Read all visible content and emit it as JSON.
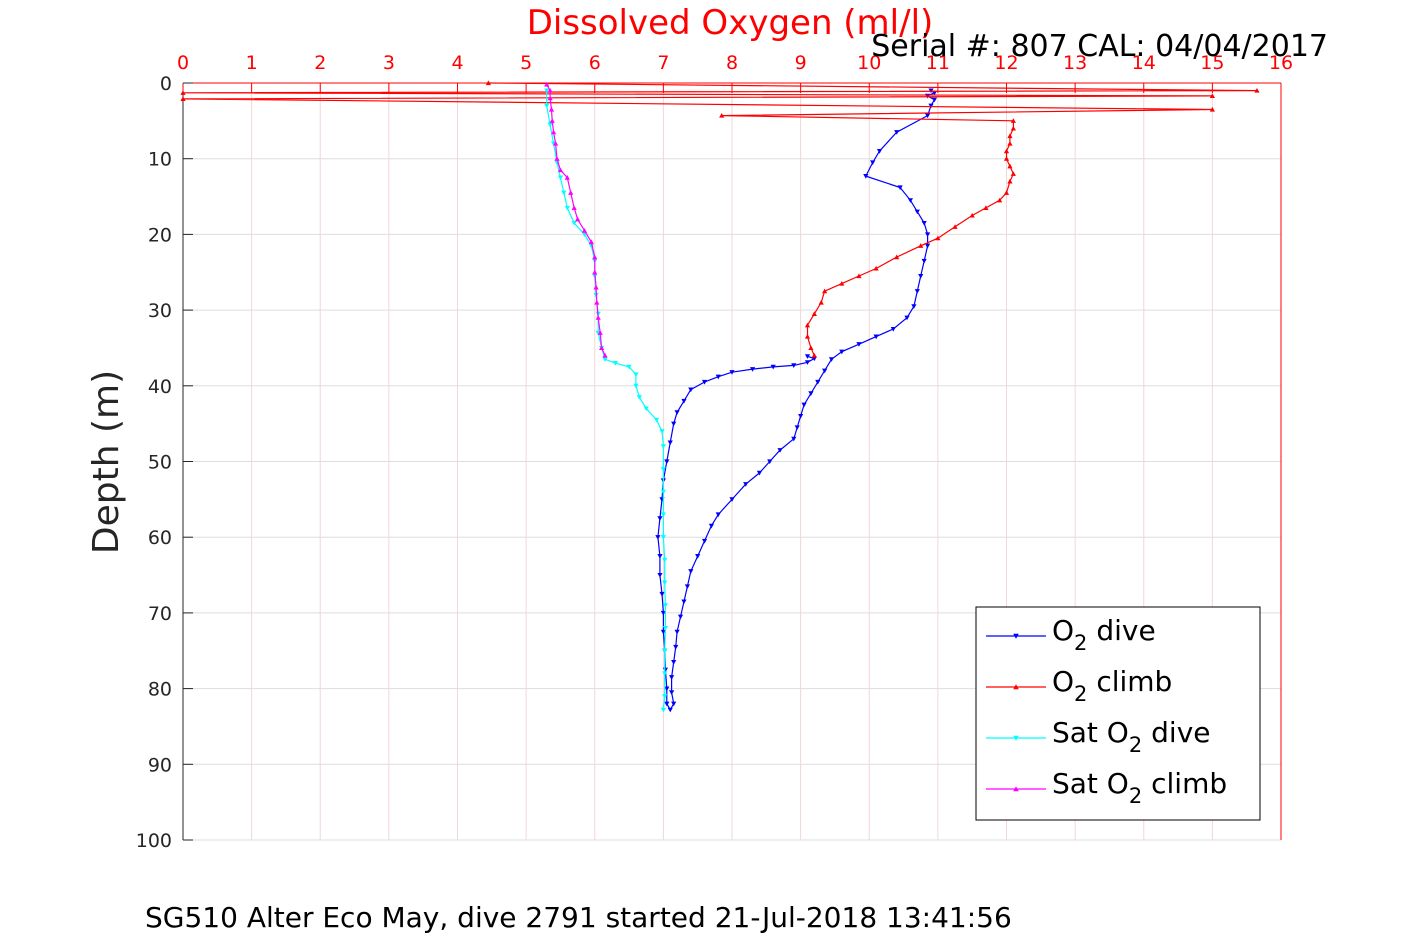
{
  "chart_data": {
    "type": "line",
    "title": "Dissolved Oxygen (ml/l)",
    "subtitle": "Serial #: 807  CAL: 04/04/2017",
    "footer": "SG510 Alter Eco May, dive 2791 started 21-Jul-2018 13:41:56",
    "xlabel": "Dissolved Oxygen (ml/l)",
    "ylabel": "Depth (m)",
    "xlim": [
      0,
      16
    ],
    "ylim": [
      0,
      100
    ],
    "y_reversed": true,
    "x_axis_position": "top",
    "grid": true,
    "legend_placement": "bottom-right",
    "x_ticks": [
      "0",
      "1",
      "2",
      "3",
      "4",
      "5",
      "6",
      "7",
      "8",
      "9",
      "10",
      "11",
      "12",
      "13",
      "14",
      "15",
      "16"
    ],
    "y_ticks": [
      "0",
      "10",
      "20",
      "30",
      "40",
      "50",
      "60",
      "70",
      "80",
      "90",
      "100"
    ],
    "colors": {
      "title": "#ff0000",
      "x_axis": "#ff0000",
      "y_axis": "#262626",
      "grid": "#dcdcdc"
    },
    "series": [
      {
        "name": "O2 dive",
        "legend": {
          "base": "O",
          "sub": "2",
          "rest": " dive"
        },
        "color": "#0000ff",
        "marker": "triangle-down",
        "points": [
          [
            10.9,
            1.0
          ],
          [
            10.95,
            1.3
          ],
          [
            10.85,
            1.7
          ],
          [
            10.95,
            2.2
          ],
          [
            10.9,
            3.0
          ],
          [
            10.85,
            4.3
          ],
          [
            10.4,
            6.5
          ],
          [
            10.15,
            9.0
          ],
          [
            10.05,
            10.5
          ],
          [
            9.95,
            12.3
          ],
          [
            10.45,
            13.8
          ],
          [
            10.6,
            15.5
          ],
          [
            10.7,
            17.0
          ],
          [
            10.8,
            18.5
          ],
          [
            10.85,
            20.0
          ],
          [
            10.85,
            21.5
          ],
          [
            10.8,
            23.5
          ],
          [
            10.75,
            25.5
          ],
          [
            10.7,
            27.5
          ],
          [
            10.65,
            29.5
          ],
          [
            10.55,
            31.0
          ],
          [
            10.35,
            32.5
          ],
          [
            10.1,
            33.5
          ],
          [
            9.85,
            34.5
          ],
          [
            9.6,
            35.5
          ],
          [
            9.45,
            36.5
          ],
          [
            9.35,
            38.0
          ],
          [
            9.25,
            39.5
          ],
          [
            9.15,
            41.0
          ],
          [
            9.05,
            42.5
          ],
          [
            9.0,
            44.0
          ],
          [
            8.95,
            45.5
          ],
          [
            8.9,
            47.0
          ],
          [
            8.7,
            48.5
          ],
          [
            8.55,
            50.0
          ],
          [
            8.4,
            51.5
          ],
          [
            8.2,
            53.0
          ],
          [
            8.0,
            55.0
          ],
          [
            7.8,
            57.0
          ],
          [
            7.7,
            58.5
          ],
          [
            7.6,
            60.5
          ],
          [
            7.5,
            62.5
          ],
          [
            7.4,
            64.5
          ],
          [
            7.35,
            66.5
          ],
          [
            7.3,
            68.5
          ],
          [
            7.25,
            70.5
          ],
          [
            7.2,
            72.5
          ],
          [
            7.18,
            74.5
          ],
          [
            7.15,
            76.5
          ],
          [
            7.12,
            78.5
          ],
          [
            7.12,
            80.5
          ],
          [
            7.15,
            82.0
          ],
          [
            7.1,
            82.8
          ],
          [
            7.05,
            82.0
          ],
          [
            7.05,
            80.0
          ],
          [
            7.03,
            77.5
          ],
          [
            7.02,
            75.0
          ],
          [
            7.0,
            72.5
          ],
          [
            7.0,
            70.0
          ],
          [
            6.98,
            67.5
          ],
          [
            6.95,
            65.0
          ],
          [
            6.95,
            62.5
          ],
          [
            6.92,
            60.0
          ],
          [
            6.95,
            57.5
          ],
          [
            6.98,
            55.0
          ],
          [
            7.0,
            52.5
          ],
          [
            7.05,
            50.0
          ],
          [
            7.1,
            47.5
          ],
          [
            7.15,
            45.0
          ],
          [
            7.2,
            43.5
          ],
          [
            7.3,
            42.0
          ],
          [
            7.4,
            40.5
          ],
          [
            7.6,
            39.5
          ],
          [
            7.8,
            38.8
          ],
          [
            8.0,
            38.2
          ],
          [
            8.3,
            37.8
          ],
          [
            8.6,
            37.5
          ],
          [
            8.9,
            37.3
          ],
          [
            9.1,
            36.9
          ],
          [
            9.2,
            36.4
          ],
          [
            9.1,
            36.1
          ]
        ]
      },
      {
        "name": "O2 climb",
        "legend": {
          "base": "O",
          "sub": "2",
          "rest": " climb"
        },
        "color": "#ff0000",
        "marker": "triangle-up",
        "points": [
          [
            9.2,
            36.0
          ],
          [
            9.15,
            35.0
          ],
          [
            9.1,
            33.5
          ],
          [
            9.1,
            32.0
          ],
          [
            9.2,
            30.5
          ],
          [
            9.3,
            29.0
          ],
          [
            9.35,
            27.5
          ],
          [
            9.6,
            26.5
          ],
          [
            9.85,
            25.5
          ],
          [
            10.1,
            24.5
          ],
          [
            10.4,
            23.0
          ],
          [
            10.75,
            21.5
          ],
          [
            11.0,
            20.5
          ],
          [
            11.25,
            19.0
          ],
          [
            11.5,
            17.5
          ],
          [
            11.7,
            16.5
          ],
          [
            11.9,
            15.5
          ],
          [
            12.0,
            14.5
          ],
          [
            12.05,
            13.0
          ],
          [
            12.1,
            12.0
          ],
          [
            12.05,
            11.0
          ],
          [
            12.0,
            10.0
          ],
          [
            12.0,
            9.0
          ],
          [
            12.05,
            8.0
          ],
          [
            12.05,
            7.0
          ],
          [
            12.1,
            6.0
          ],
          [
            12.1,
            5.0
          ],
          [
            7.85,
            4.3
          ],
          [
            15.0,
            3.5
          ],
          [
            0.0,
            2.1
          ],
          [
            15.0,
            1.7
          ],
          [
            0.0,
            1.3
          ],
          [
            15.65,
            1.0
          ],
          [
            4.45,
            0.0
          ]
        ]
      },
      {
        "name": "Sat O2 dive",
        "legend": {
          "base": "Sat O",
          "sub": "2",
          "rest": " dive"
        },
        "color": "#00ffff",
        "marker": "triangle-down",
        "points": [
          [
            5.3,
            1.0
          ],
          [
            5.3,
            3.0
          ],
          [
            5.35,
            5.5
          ],
          [
            5.4,
            8.0
          ],
          [
            5.45,
            10.5
          ],
          [
            5.5,
            12.5
          ],
          [
            5.55,
            14.5
          ],
          [
            5.6,
            16.5
          ],
          [
            5.7,
            18.5
          ],
          [
            5.85,
            20.0
          ],
          [
            5.95,
            21.5
          ],
          [
            6.0,
            23.5
          ],
          [
            6.0,
            25.5
          ],
          [
            6.02,
            28.0
          ],
          [
            6.05,
            30.5
          ],
          [
            6.05,
            33.0
          ],
          [
            6.1,
            35.0
          ],
          [
            6.15,
            36.5
          ],
          [
            6.3,
            37.0
          ],
          [
            6.5,
            37.5
          ],
          [
            6.6,
            38.5
          ],
          [
            6.6,
            40.0
          ],
          [
            6.65,
            41.5
          ],
          [
            6.75,
            43.0
          ],
          [
            6.9,
            44.5
          ],
          [
            6.98,
            46.0
          ],
          [
            7.0,
            48.0
          ],
          [
            7.0,
            51.0
          ],
          [
            7.0,
            54.0
          ],
          [
            7.0,
            57.0
          ],
          [
            7.0,
            60.0
          ],
          [
            7.02,
            63.0
          ],
          [
            7.02,
            66.0
          ],
          [
            7.03,
            69.0
          ],
          [
            7.03,
            72.0
          ],
          [
            7.02,
            75.0
          ],
          [
            7.02,
            78.0
          ],
          [
            7.02,
            81.0
          ],
          [
            7.0,
            82.8
          ]
        ]
      },
      {
        "name": "Sat O2 climb",
        "legend": {
          "base": "Sat O",
          "sub": "2",
          "rest": " climb"
        },
        "color": "#ff00ff",
        "marker": "triangle-up",
        "points": [
          [
            6.15,
            36.0
          ],
          [
            6.1,
            35.0
          ],
          [
            6.08,
            33.0
          ],
          [
            6.05,
            31.0
          ],
          [
            6.03,
            29.0
          ],
          [
            6.02,
            27.0
          ],
          [
            6.0,
            25.0
          ],
          [
            6.0,
            23.0
          ],
          [
            5.95,
            21.0
          ],
          [
            5.85,
            19.5
          ],
          [
            5.75,
            18.0
          ],
          [
            5.7,
            16.5
          ],
          [
            5.65,
            14.5
          ],
          [
            5.6,
            12.5
          ],
          [
            5.5,
            11.5
          ],
          [
            5.45,
            10.0
          ],
          [
            5.43,
            8.0
          ],
          [
            5.4,
            6.5
          ],
          [
            5.38,
            5.0
          ],
          [
            5.37,
            3.5
          ],
          [
            5.35,
            2.0
          ],
          [
            5.35,
            1.0
          ],
          [
            5.3,
            0.2
          ]
        ]
      }
    ]
  }
}
